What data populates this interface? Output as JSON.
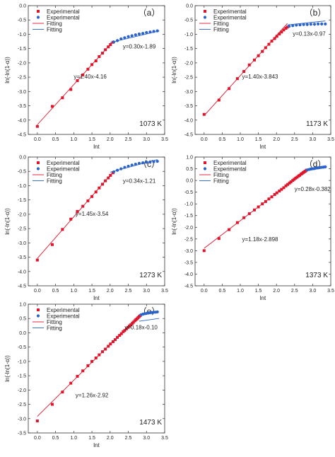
{
  "chart_data": [
    {
      "type": "scatter",
      "panel_label": "（a）",
      "temperature_label": "1073 K",
      "xlabel": "lnt",
      "ylabel": "ln(-ln(1-α))",
      "xlim": [
        -0.25,
        3.5
      ],
      "ylim": [
        -4.5,
        0.0
      ],
      "xticks": [
        "0.0",
        "0.5",
        "1.0",
        "1.5",
        "2.0",
        "2.5",
        "3.0",
        "3.5"
      ],
      "yticks": [
        "0.0",
        "-0.5",
        "-1.0",
        "-1.5",
        "-2.0",
        "-2.5",
        "-3.0",
        "-3.5",
        "-4.0",
        "-4.5"
      ],
      "legend": [
        "Experimental",
        "Experimental",
        "Fitting",
        "Fitting"
      ],
      "legend_position": "top-left",
      "series": [
        {
          "name": "Experimental",
          "marker": "square",
          "color": "#e0152b",
          "x": [
            0.0,
            0.41,
            0.69,
            0.92,
            1.1,
            1.25,
            1.39,
            1.5,
            1.61,
            1.7,
            1.79,
            1.87,
            1.95,
            2.01,
            2.08
          ],
          "y": [
            -4.22,
            -3.52,
            -3.22,
            -2.93,
            -2.62,
            -2.42,
            -2.22,
            -2.06,
            -1.93,
            -1.78,
            -1.66,
            -1.54,
            -1.44,
            -1.36,
            -1.28
          ]
        },
        {
          "name": "Experimental",
          "marker": "circle",
          "color": "#2a63c9",
          "x": [
            2.1,
            2.2,
            2.3,
            2.4,
            2.5,
            2.6,
            2.7,
            2.8,
            2.9,
            3.0,
            3.1,
            3.2,
            3.3
          ],
          "y": [
            -1.27,
            -1.22,
            -1.16,
            -1.12,
            -1.08,
            -1.05,
            -1.02,
            -0.99,
            -0.97,
            -0.94,
            -0.92,
            -0.9,
            -0.88
          ]
        },
        {
          "name": "Fitting",
          "type": "line",
          "color": "#e0152b",
          "slope": 1.4,
          "intercept": -4.16,
          "x_range": [
            0.0,
            2.1
          ]
        },
        {
          "name": "Fitting",
          "type": "line",
          "color": "#2a63c9",
          "slope": 0.3,
          "intercept": -1.89,
          "x_range": [
            2.0,
            3.35
          ]
        }
      ],
      "annotations": [
        {
          "text": "y=1.40x-4.16",
          "x": 1.0,
          "y": -2.55
        },
        {
          "text": "y=0.30x-1.89",
          "x": 2.35,
          "y": -1.5
        }
      ]
    },
    {
      "type": "scatter",
      "panel_label": "（b）",
      "temperature_label": "1173 K",
      "xlabel": "lnt",
      "ylabel": "ln(-ln(1-α))",
      "xlim": [
        -0.25,
        3.5
      ],
      "ylim": [
        -4.5,
        0.0
      ],
      "xticks": [
        "0.0",
        "0.5",
        "1.0",
        "1.5",
        "2.0",
        "2.5",
        "3.0",
        "3.5"
      ],
      "yticks": [
        "0.0",
        "-0.5",
        "-1.0",
        "-1.5",
        "-2.0",
        "-2.5",
        "-3.0",
        "-3.5",
        "-4.0",
        "-4.5"
      ],
      "legend": [
        "Experimental",
        "Experimental",
        "Fitting",
        "Fitting"
      ],
      "legend_position": "top-left",
      "series": [
        {
          "name": "Experimental",
          "marker": "square",
          "color": "#e0152b",
          "x": [
            0.0,
            0.41,
            0.69,
            0.92,
            1.1,
            1.25,
            1.39,
            1.5,
            1.61,
            1.7,
            1.79,
            1.87,
            1.95,
            2.01,
            2.08,
            2.14,
            2.2,
            2.26,
            2.3
          ],
          "y": [
            -3.8,
            -3.3,
            -2.9,
            -2.55,
            -2.3,
            -2.07,
            -1.9,
            -1.75,
            -1.6,
            -1.47,
            -1.35,
            -1.24,
            -1.15,
            -1.07,
            -0.99,
            -0.92,
            -0.85,
            -0.79,
            -0.75
          ]
        },
        {
          "name": "Experimental",
          "marker": "circle",
          "color": "#2a63c9",
          "x": [
            2.35,
            2.45,
            2.55,
            2.65,
            2.75,
            2.85,
            2.95,
            3.05,
            3.15,
            3.25,
            3.35
          ],
          "y": [
            -0.72,
            -0.7,
            -0.68,
            -0.67,
            -0.66,
            -0.66,
            -0.65,
            -0.65,
            -0.64,
            -0.64,
            -0.64
          ]
        },
        {
          "name": "Fitting",
          "type": "line",
          "color": "#e0152b",
          "slope": 1.4,
          "intercept": -3.843,
          "x_range": [
            0.0,
            2.3
          ]
        },
        {
          "name": "Fitting",
          "type": "line",
          "color": "#2a63c9",
          "slope": 0.13,
          "intercept": -0.97,
          "x_range": [
            2.3,
            3.35
          ]
        }
      ],
      "annotations": [
        {
          "text": "y=1.40x-3.843",
          "x": 1.05,
          "y": -2.55
        },
        {
          "text": "y=0.13x-0.97",
          "x": 2.45,
          "y": -1.05
        }
      ]
    },
    {
      "type": "scatter",
      "panel_label": "（c）",
      "temperature_label": "1273 K",
      "xlabel": "lnt",
      "ylabel": "ln(-ln(1-α))",
      "xlim": [
        -0.25,
        3.5
      ],
      "ylim": [
        -4.5,
        0.0
      ],
      "xticks": [
        "0.0",
        "0.5",
        "1.0",
        "1.5",
        "2.0",
        "2.5",
        "3.0",
        "3.5"
      ],
      "yticks": [
        "0.0",
        "-0.5",
        "-1.0",
        "-1.5",
        "-2.0",
        "-2.5",
        "-3.0",
        "-3.5",
        "-4.0",
        "-4.5"
      ],
      "legend": [
        "Experimental",
        "Experimental",
        "Fitting",
        "Fitting"
      ],
      "legend_position": "top-left",
      "series": [
        {
          "name": "Experimental",
          "marker": "square",
          "color": "#e0152b",
          "x": [
            0.0,
            0.41,
            0.69,
            0.92,
            1.1,
            1.25,
            1.39,
            1.5,
            1.61,
            1.7,
            1.79,
            1.87,
            1.95,
            2.01,
            2.08
          ],
          "y": [
            -3.6,
            -3.06,
            -2.53,
            -2.17,
            -1.9,
            -1.72,
            -1.53,
            -1.38,
            -1.22,
            -1.08,
            -0.95,
            -0.83,
            -0.73,
            -0.64,
            -0.55
          ]
        },
        {
          "name": "Experimental",
          "marker": "circle",
          "color": "#2a63c9",
          "x": [
            2.1,
            2.2,
            2.3,
            2.4,
            2.5,
            2.6,
            2.7,
            2.8,
            2.9,
            3.0,
            3.1,
            3.2,
            3.3
          ],
          "y": [
            -0.52,
            -0.46,
            -0.41,
            -0.36,
            -0.32,
            -0.28,
            -0.25,
            -0.22,
            -0.2,
            -0.18,
            -0.17,
            -0.16,
            -0.15
          ]
        },
        {
          "name": "Fitting",
          "type": "line",
          "color": "#e0152b",
          "slope": 1.45,
          "intercept": -3.54,
          "x_range": [
            0.0,
            2.1
          ]
        },
        {
          "name": "Fitting",
          "type": "line",
          "color": "#2a63c9",
          "slope": 0.34,
          "intercept": -1.21,
          "x_range": [
            2.0,
            3.3
          ]
        }
      ],
      "annotations": [
        {
          "text": "y=1.45x-3.54",
          "x": 1.05,
          "y": -2.05
        },
        {
          "text": "y=0.34x-1.21",
          "x": 2.35,
          "y": -0.9
        }
      ]
    },
    {
      "type": "scatter",
      "panel_label": "（d）",
      "temperature_label": "1373 K",
      "xlabel": "lnt",
      "ylabel": "ln(-ln(1-α))",
      "xlim": [
        -0.25,
        3.5
      ],
      "ylim": [
        -4.5,
        1.0
      ],
      "xticks": [
        "0.0",
        "0.5",
        "1.0",
        "1.5",
        "2.0",
        "2.5",
        "3.0",
        "3.5"
      ],
      "yticks": [
        "1.0",
        "0.5",
        "0.0",
        "-0.5",
        "-1.0",
        "-1.5",
        "-2.0",
        "-2.5",
        "-3.0",
        "-3.5",
        "-4.0",
        "-4.5"
      ],
      "legend": [
        "Experimental",
        "Experimental",
        "Fitting",
        "Fitting"
      ],
      "legend_position": "top-left",
      "series": [
        {
          "name": "Experimental",
          "marker": "square",
          "color": "#e0152b",
          "x": [
            0.0,
            0.41,
            0.69,
            0.92,
            1.1,
            1.25,
            1.39,
            1.5,
            1.61,
            1.7,
            1.79,
            1.87,
            1.95,
            2.01,
            2.08,
            2.14,
            2.2,
            2.26,
            2.31,
            2.36,
            2.4,
            2.45,
            2.49,
            2.53,
            2.57,
            2.61,
            2.64,
            2.68,
            2.71,
            2.74,
            2.77,
            2.8,
            2.83
          ],
          "y": [
            -3.0,
            -2.48,
            -2.1,
            -1.8,
            -1.59,
            -1.42,
            -1.26,
            -1.13,
            -1.0,
            -0.9,
            -0.79,
            -0.7,
            -0.6,
            -0.53,
            -0.45,
            -0.38,
            -0.31,
            -0.23,
            -0.17,
            -0.11,
            -0.06,
            0.0,
            0.05,
            0.1,
            0.14,
            0.19,
            0.22,
            0.27,
            0.3,
            0.34,
            0.37,
            0.4,
            0.44
          ]
        },
        {
          "name": "Experimental",
          "marker": "circle",
          "color": "#2a63c9",
          "x": [
            2.85,
            2.9,
            2.95,
            3.0,
            3.05,
            3.1,
            3.15,
            3.2,
            3.25,
            3.3,
            3.35
          ],
          "y": [
            0.45,
            0.47,
            0.49,
            0.5,
            0.51,
            0.53,
            0.54,
            0.55,
            0.56,
            0.57,
            0.58
          ]
        },
        {
          "name": "Fitting",
          "type": "line",
          "color": "#e0152b",
          "slope": 1.18,
          "intercept": -2.898,
          "x_range": [
            0.0,
            2.85
          ]
        },
        {
          "name": "Fitting",
          "type": "line",
          "color": "#2a63c9",
          "slope": 0.28,
          "intercept": -0.382,
          "x_range": [
            2.8,
            3.35
          ]
        }
      ],
      "annotations": [
        {
          "text": "y=1.18x-2.898",
          "x": 1.05,
          "y": -2.6
        },
        {
          "text": "y=0.28x-0.382",
          "x": 2.5,
          "y": -0.45
        }
      ]
    },
    {
      "type": "scatter",
      "panel_label": "（e）",
      "temperature_label": "1473 K",
      "xlabel": "lnt",
      "ylabel": "ln(-ln(1-α))",
      "xlim": [
        -0.25,
        3.5
      ],
      "ylim": [
        -3.5,
        1.0
      ],
      "xticks": [
        "0.0",
        "0.5",
        "1.0",
        "1.5",
        "2.0",
        "2.5",
        "3.0",
        "3.5"
      ],
      "yticks": [
        "1.0",
        "0.5",
        "0.0",
        "-0.5",
        "-1.0",
        "-1.5",
        "-2.0",
        "-2.5",
        "-3.0",
        "-3.5"
      ],
      "legend": [
        "Experimental",
        "Experimental",
        "Fitting",
        "Fitting"
      ],
      "legend_position": "top-left",
      "series": [
        {
          "name": "Experimental",
          "marker": "square",
          "color": "#e0152b",
          "x": [
            0.0,
            0.41,
            0.69,
            0.92,
            1.1,
            1.25,
            1.39,
            1.5,
            1.61,
            1.7,
            1.79,
            1.87,
            1.95,
            2.01,
            2.08,
            2.14,
            2.2,
            2.26,
            2.31,
            2.36,
            2.4,
            2.45,
            2.49,
            2.53,
            2.57,
            2.61,
            2.64,
            2.68,
            2.71,
            2.74,
            2.77,
            2.8,
            2.83
          ],
          "y": [
            -3.08,
            -2.5,
            -2.07,
            -1.76,
            -1.52,
            -1.33,
            -1.15,
            -1.0,
            -0.88,
            -0.77,
            -0.66,
            -0.57,
            -0.47,
            -0.39,
            -0.31,
            -0.24,
            -0.16,
            -0.09,
            -0.03,
            0.04,
            0.08,
            0.14,
            0.19,
            0.24,
            0.28,
            0.33,
            0.37,
            0.42,
            0.46,
            0.49,
            0.53,
            0.57,
            0.6
          ]
        },
        {
          "name": "Experimental",
          "marker": "circle",
          "color": "#2a63c9",
          "x": [
            2.85,
            2.9,
            2.95,
            3.0,
            3.05,
            3.1,
            3.15,
            3.2,
            3.25,
            3.3
          ],
          "y": [
            0.63,
            0.65,
            0.67,
            0.68,
            0.69,
            0.7,
            0.71,
            0.72,
            0.72,
            0.73
          ]
        },
        {
          "name": "Fitting",
          "type": "line",
          "color": "#e0152b",
          "slope": 1.26,
          "intercept": -2.92,
          "x_range": [
            0.0,
            2.85
          ]
        },
        {
          "name": "Fitting",
          "type": "line",
          "color": "#2a63c9",
          "slope": 0.18,
          "intercept": -0.1,
          "x_range": [
            2.8,
            3.35
          ]
        }
      ],
      "annotations": [
        {
          "text": "y=1.26x-2.92",
          "x": 1.05,
          "y": -2.25
        },
        {
          "text": "y=0.18x-0.10",
          "x": 2.4,
          "y": 0.12
        }
      ]
    }
  ]
}
